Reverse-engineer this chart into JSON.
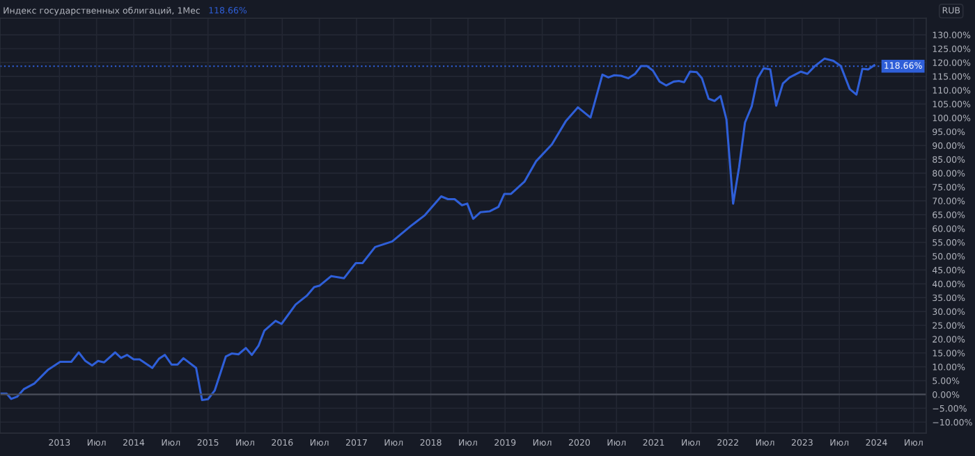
{
  "chart_data": {
    "type": "line",
    "title": "Индекс государственных облигаций, 1Мес",
    "subtitle": "118.66%",
    "annotations": [
      "RUB"
    ],
    "x": [
      2012.2,
      2012.29,
      2012.35,
      2012.43,
      2012.52,
      2012.66,
      2012.85,
      2013.01,
      2013.16,
      2013.26,
      2013.35,
      2013.44,
      2013.52,
      2013.6,
      2013.75,
      2013.83,
      2013.91,
      2014.0,
      2014.08,
      2014.25,
      2014.34,
      2014.42,
      2014.51,
      2014.59,
      2014.67,
      2014.84,
      2014.92,
      2015.0,
      2015.09,
      2015.24,
      2015.32,
      2015.41,
      2015.51,
      2015.59,
      2015.68,
      2015.76,
      2015.91,
      2015.99,
      2016.18,
      2016.33,
      2016.43,
      2016.5,
      2016.66,
      2016.83,
      2016.99,
      2017.08,
      2017.25,
      2017.48,
      2017.73,
      2017.79,
      2017.92,
      2018.14,
      2018.23,
      2018.32,
      2018.42,
      2018.49,
      2018.57,
      2018.67,
      2018.79,
      2018.91,
      2018.99,
      2019.08,
      2019.26,
      2019.42,
      2019.63,
      2019.82,
      2019.98,
      2020.15,
      2020.31,
      2020.39,
      2020.47,
      2020.56,
      2020.66,
      2020.75,
      2020.83,
      2020.91,
      2020.99,
      2021.08,
      2021.17,
      2021.27,
      2021.34,
      2021.41,
      2021.49,
      2021.58,
      2021.65,
      2021.74,
      2021.82,
      2021.9,
      2021.98,
      2022.07,
      2022.15,
      2022.23,
      2022.32,
      2022.4,
      2022.48,
      2022.57,
      2022.65,
      2022.74,
      2022.83,
      2022.98,
      2023.07,
      2023.17,
      2023.3,
      2023.42,
      2023.52,
      2023.64,
      2023.73,
      2023.81,
      2023.89,
      2023.97
    ],
    "series": [
      {
        "color": "#2f5fd8",
        "values": [
          0.3,
          0.3,
          -1.6,
          -0.8,
          1.9,
          3.9,
          9.0,
          11.8,
          11.8,
          15.2,
          12.1,
          10.5,
          12.1,
          11.6,
          15.2,
          13.2,
          14.3,
          12.7,
          12.7,
          9.6,
          12.9,
          14.3,
          10.8,
          10.8,
          13.1,
          9.6,
          -2.0,
          -1.7,
          1.4,
          13.7,
          14.8,
          14.5,
          16.8,
          14.3,
          17.6,
          23.1,
          26.6,
          25.5,
          32.5,
          35.7,
          38.8,
          39.3,
          42.8,
          42.0,
          47.5,
          47.5,
          53.3,
          55.3,
          60.9,
          62.1,
          64.8,
          71.6,
          70.6,
          70.6,
          68.4,
          69.0,
          63.5,
          65.9,
          66.2,
          67.8,
          72.5,
          72.5,
          76.9,
          84.4,
          90.4,
          98.9,
          103.8,
          100.1,
          115.6,
          114.6,
          115.4,
          115.2,
          114.3,
          115.9,
          118.7,
          118.7,
          117.1,
          113.1,
          111.7,
          113.1,
          113.3,
          112.9,
          116.7,
          116.5,
          114.3,
          106.9,
          106.1,
          107.9,
          99.4,
          69.0,
          82.1,
          98.3,
          104.1,
          114.3,
          117.9,
          117.5,
          104.4,
          112.4,
          114.6,
          116.7,
          115.9,
          118.7,
          121.4,
          120.6,
          118.7,
          110.4,
          108.4,
          117.7,
          117.5,
          119.0
        ]
      }
    ],
    "xlim": [
      2012.2,
      2024.67
    ],
    "xticks": [
      {
        "value": 2013,
        "label": "2013"
      },
      {
        "value": 2013.5,
        "label": "Июл"
      },
      {
        "value": 2014,
        "label": "2014"
      },
      {
        "value": 2014.5,
        "label": "Июл"
      },
      {
        "value": 2015,
        "label": "2015"
      },
      {
        "value": 2015.5,
        "label": "Июл"
      },
      {
        "value": 2016,
        "label": "2016"
      },
      {
        "value": 2016.5,
        "label": "Июл"
      },
      {
        "value": 2017,
        "label": "2017"
      },
      {
        "value": 2017.5,
        "label": "Июл"
      },
      {
        "value": 2018,
        "label": "2018"
      },
      {
        "value": 2018.5,
        "label": "Июл"
      },
      {
        "value": 2019,
        "label": "2019"
      },
      {
        "value": 2019.5,
        "label": "Июл"
      },
      {
        "value": 2020,
        "label": "2020"
      },
      {
        "value": 2020.5,
        "label": "Июл"
      },
      {
        "value": 2021,
        "label": "2021"
      },
      {
        "value": 2021.5,
        "label": "Июл"
      },
      {
        "value": 2022,
        "label": "2022"
      },
      {
        "value": 2022.5,
        "label": "Июл"
      },
      {
        "value": 2023,
        "label": "2023"
      },
      {
        "value": 2023.5,
        "label": "Июл"
      },
      {
        "value": 2024,
        "label": "2024"
      },
      {
        "value": 2024.5,
        "label": "Июл"
      }
    ],
    "ylim": [
      -14,
      136
    ],
    "yticks": [
      {
        "value": -10,
        "label": "−10.00%"
      },
      {
        "value": -5,
        "label": "−5.00%"
      },
      {
        "value": 0,
        "label": "0.00%"
      },
      {
        "value": 5,
        "label": "5.00%"
      },
      {
        "value": 10,
        "label": "10.00%"
      },
      {
        "value": 15,
        "label": "15.00%"
      },
      {
        "value": 20,
        "label": "20.00%"
      },
      {
        "value": 25,
        "label": "25.00%"
      },
      {
        "value": 30,
        "label": "30.00%"
      },
      {
        "value": 35,
        "label": "35.00%"
      },
      {
        "value": 40,
        "label": "40.00%"
      },
      {
        "value": 45,
        "label": "45.00%"
      },
      {
        "value": 50,
        "label": "50.00%"
      },
      {
        "value": 55,
        "label": "55.00%"
      },
      {
        "value": 60,
        "label": "60.00%"
      },
      {
        "value": 65,
        "label": "65.00%"
      },
      {
        "value": 70,
        "label": "70.00%"
      },
      {
        "value": 75,
        "label": "75.00%"
      },
      {
        "value": 80,
        "label": "80.00%"
      },
      {
        "value": 85,
        "label": "85.00%"
      },
      {
        "value": 90,
        "label": "90.00%"
      },
      {
        "value": 95,
        "label": "95.00%"
      },
      {
        "value": 100,
        "label": "100.00%"
      },
      {
        "value": 105,
        "label": "105.00%"
      },
      {
        "value": 110,
        "label": "110.00%"
      },
      {
        "value": 115,
        "label": "115.00%"
      },
      {
        "value": 120,
        "label": "120.00%"
      },
      {
        "value": 125,
        "label": "125.00%"
      },
      {
        "value": 130,
        "label": "130.00%"
      }
    ],
    "ref_lines": [
      {
        "axis": "y",
        "value": 0,
        "color": "#4a4e5a",
        "line_style": "solid"
      },
      {
        "axis": "y",
        "value": 118.66,
        "label": "118.66%",
        "color": "#2f5fd8",
        "line_style": "dotted"
      }
    ],
    "grid": true,
    "legend": false,
    "marker": "none",
    "line_style": "solid"
  }
}
